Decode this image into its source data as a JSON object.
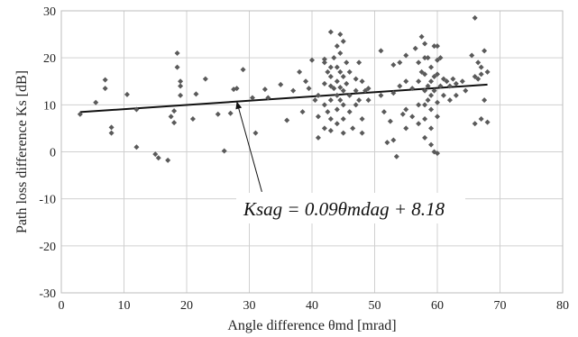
{
  "chart_data": {
    "type": "scatter",
    "title": "",
    "xlabel": "Angle difference θmd [mrad]",
    "ylabel": "Path loss difference Ks [dB]",
    "xlim": [
      0,
      80
    ],
    "ylim": [
      -30,
      30
    ],
    "xticks": [
      0,
      10,
      20,
      30,
      40,
      50,
      60,
      70,
      80
    ],
    "yticks": [
      -30,
      -20,
      -10,
      0,
      10,
      20,
      30
    ],
    "grid": true,
    "legend": "none",
    "marker_color": "#5a5a5a",
    "trendline": {
      "slope": 0.09,
      "intercept": 8.18,
      "x_range": [
        3,
        68
      ],
      "color": "#111111"
    },
    "annotation": {
      "text": "Ksag = 0.09θmdag + 8.18",
      "arrow_from": [
        32,
        -8.5
      ],
      "arrow_to": [
        28,
        10.7
      ]
    },
    "series": [
      {
        "points": [
          [
            3,
            8
          ],
          [
            5.5,
            10.5
          ],
          [
            7,
            13.5
          ],
          [
            7,
            15.3
          ],
          [
            8,
            5.2
          ],
          [
            8,
            4
          ],
          [
            10.5,
            12.2
          ],
          [
            12,
            9
          ],
          [
            12,
            1
          ],
          [
            15,
            -0.5
          ],
          [
            15.5,
            -1.3
          ],
          [
            17,
            -1.8
          ],
          [
            17.5,
            7.5
          ],
          [
            18,
            8.7
          ],
          [
            18,
            6.2
          ],
          [
            18.5,
            21
          ],
          [
            18.5,
            18
          ],
          [
            19,
            15
          ],
          [
            19,
            14
          ],
          [
            19,
            12
          ],
          [
            21,
            7
          ],
          [
            21.5,
            12.3
          ],
          [
            23,
            15.5
          ],
          [
            25,
            8
          ],
          [
            26,
            0.2
          ],
          [
            27,
            8.2
          ],
          [
            27.5,
            13.3
          ],
          [
            28,
            13.5
          ],
          [
            29,
            17.5
          ],
          [
            30.5,
            11.5
          ],
          [
            31,
            4
          ],
          [
            32.5,
            13.3
          ],
          [
            33,
            11.5
          ],
          [
            35,
            14.3
          ],
          [
            36,
            6.7
          ],
          [
            37,
            13
          ],
          [
            38,
            17
          ],
          [
            38.5,
            8.5
          ],
          [
            39,
            15
          ],
          [
            39.5,
            13.5
          ],
          [
            40,
            19.5
          ],
          [
            40.5,
            11
          ],
          [
            41,
            12
          ],
          [
            41,
            7.5
          ],
          [
            41,
            3
          ],
          [
            42,
            19.7
          ],
          [
            42,
            19
          ],
          [
            42,
            14.5
          ],
          [
            42,
            10
          ],
          [
            42,
            5
          ],
          [
            42.5,
            17
          ],
          [
            42.5,
            8.5
          ],
          [
            43,
            25.5
          ],
          [
            43,
            18
          ],
          [
            43,
            16
          ],
          [
            43,
            14
          ],
          [
            43,
            11
          ],
          [
            43,
            7
          ],
          [
            43,
            4.5
          ],
          [
            43.5,
            20
          ],
          [
            43.5,
            13.5
          ],
          [
            44,
            22.5
          ],
          [
            44,
            18
          ],
          [
            44,
            15
          ],
          [
            44,
            12
          ],
          [
            44,
            9
          ],
          [
            44,
            6
          ],
          [
            44.5,
            25
          ],
          [
            44.5,
            21
          ],
          [
            44.5,
            17
          ],
          [
            44.5,
            13.7
          ],
          [
            44.5,
            11
          ],
          [
            45,
            23.5
          ],
          [
            45,
            16
          ],
          [
            45,
            13
          ],
          [
            45,
            10
          ],
          [
            45,
            7
          ],
          [
            45,
            4
          ],
          [
            45.5,
            19
          ],
          [
            45.5,
            14.5
          ],
          [
            46,
            17
          ],
          [
            46,
            12
          ],
          [
            46,
            8.5
          ],
          [
            46.5,
            5
          ],
          [
            47,
            15.5
          ],
          [
            47,
            13
          ],
          [
            47,
            10
          ],
          [
            47.5,
            19
          ],
          [
            47.5,
            11
          ],
          [
            48,
            15
          ],
          [
            48,
            7
          ],
          [
            48,
            4
          ],
          [
            48.5,
            13
          ],
          [
            49,
            11
          ],
          [
            49,
            13.5
          ],
          [
            51,
            21.5
          ],
          [
            51,
            12
          ],
          [
            51.5,
            8.5
          ],
          [
            52,
            2
          ],
          [
            52.5,
            6.5
          ],
          [
            53,
            18.5
          ],
          [
            53,
            12.5
          ],
          [
            53,
            2.5
          ],
          [
            53.5,
            -1
          ],
          [
            54,
            14
          ],
          [
            54,
            19
          ],
          [
            54.5,
            8
          ],
          [
            55,
            20.5
          ],
          [
            55,
            15
          ],
          [
            55,
            9
          ],
          [
            55,
            5
          ],
          [
            56,
            13.5
          ],
          [
            56,
            7.5
          ],
          [
            56.5,
            22
          ],
          [
            57,
            19
          ],
          [
            57,
            15
          ],
          [
            57,
            10
          ],
          [
            57,
            6
          ],
          [
            57.5,
            24.5
          ],
          [
            57.5,
            17
          ],
          [
            58,
            23
          ],
          [
            58,
            20
          ],
          [
            58,
            16.5
          ],
          [
            58,
            13
          ],
          [
            58,
            10
          ],
          [
            58,
            7
          ],
          [
            58,
            3
          ],
          [
            58.5,
            20
          ],
          [
            58.5,
            14
          ],
          [
            58.5,
            11
          ],
          [
            59,
            18
          ],
          [
            59,
            15
          ],
          [
            59,
            12
          ],
          [
            59,
            9
          ],
          [
            59,
            5
          ],
          [
            59,
            1.5
          ],
          [
            59.5,
            22.5
          ],
          [
            59.5,
            16
          ],
          [
            59.5,
            13
          ],
          [
            59.5,
            0
          ],
          [
            60,
            22.5
          ],
          [
            60,
            19.5
          ],
          [
            60,
            16.5
          ],
          [
            60,
            10.5
          ],
          [
            60,
            7.5
          ],
          [
            60,
            -0.3
          ],
          [
            60.5,
            20
          ],
          [
            60.5,
            14
          ],
          [
            61,
            15.5
          ],
          [
            61,
            12
          ],
          [
            61.5,
            15
          ],
          [
            62,
            14
          ],
          [
            62,
            11
          ],
          [
            62.5,
            15.5
          ],
          [
            63,
            14.5
          ],
          [
            63,
            12
          ],
          [
            64,
            15
          ],
          [
            64.5,
            13
          ],
          [
            65.5,
            20.5
          ],
          [
            66,
            28.5
          ],
          [
            66,
            16
          ],
          [
            66,
            6
          ],
          [
            66.5,
            19
          ],
          [
            66.5,
            15.5
          ],
          [
            67,
            18
          ],
          [
            67,
            16.5
          ],
          [
            67,
            7
          ],
          [
            67.5,
            21.5
          ],
          [
            67.5,
            11
          ],
          [
            68,
            17
          ],
          [
            68,
            6.3
          ]
        ]
      }
    ]
  }
}
